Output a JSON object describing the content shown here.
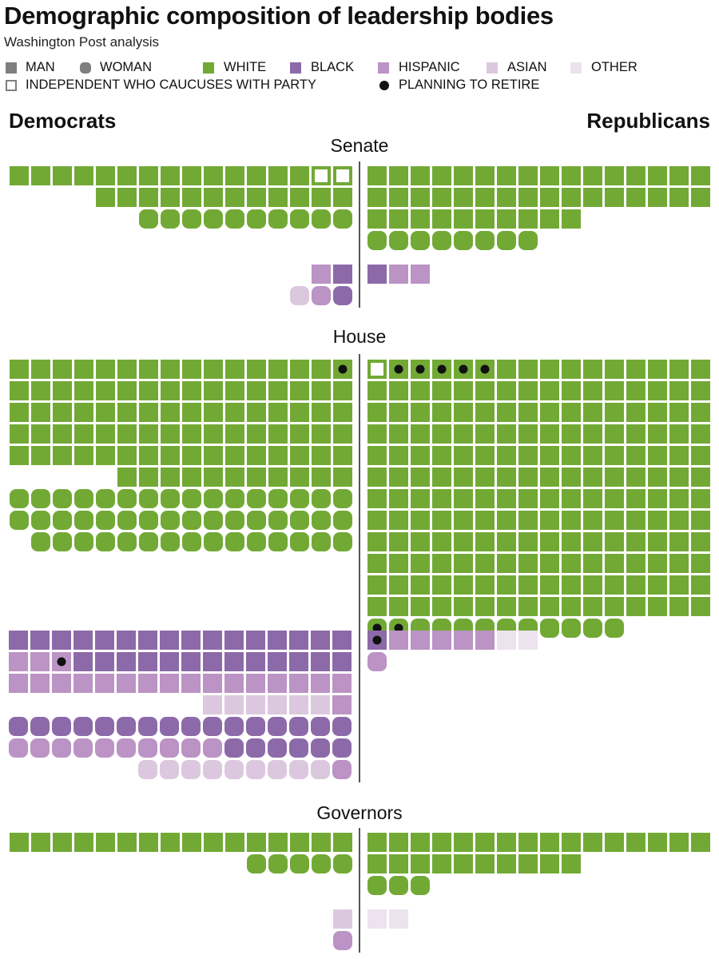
{
  "title": "Demographic composition of leadership bodies",
  "subtitle": "Washington Post analysis",
  "legend": {
    "man": "MAN",
    "woman": "WOMAN",
    "white": "WHITE",
    "black": "BLACK",
    "hispanic": "HISPANIC",
    "asian": "ASIAN",
    "other": "OTHER",
    "independent": "INDEPENDENT WHO CAUCUSES WITH PARTY",
    "retire": "PLANNING TO RETIRE"
  },
  "parties": {
    "left": "Democrats",
    "right": "Republicans"
  },
  "colors": {
    "white": "#72a935",
    "black": "#8c6aa9",
    "hispanic": "#bb93c4",
    "asian": "#dcc8de",
    "other": "#ede3ef",
    "legend_gray": "#7f7f7f",
    "retire_dot": "#111111"
  },
  "chart_data": {
    "type": "waffle",
    "unit": "one square = one member (squares = men, rounded = women)",
    "sections": [
      {
        "name": "Senate",
        "democrats": {
          "groups": [
            {
              "race": "white",
              "gender": "man",
              "rows": [
                16,
                12
              ],
              "independent": 2
            },
            {
              "race": "white",
              "gender": "woman",
              "rows": [
                10
              ]
            },
            {
              "race": "hispanic",
              "gender": "man",
              "rows": [
                1
              ]
            },
            {
              "race": "black",
              "gender": "man",
              "rows": [
                1
              ]
            },
            {
              "race": "asian",
              "gender": "woman",
              "rows": [
                1
              ]
            },
            {
              "race": "hispanic",
              "gender": "woman",
              "rows": [
                1
              ]
            },
            {
              "race": "black",
              "gender": "woman",
              "rows": [
                1
              ]
            }
          ]
        },
        "republicans": {
          "groups": [
            {
              "race": "white",
              "gender": "man",
              "rows": [
                16,
                16,
                10
              ]
            },
            {
              "race": "white",
              "gender": "woman",
              "rows": [
                8
              ]
            },
            {
              "race": "black",
              "gender": "man",
              "rows": [
                1
              ]
            },
            {
              "race": "hispanic",
              "gender": "man",
              "rows": [
                2
              ]
            }
          ]
        }
      },
      {
        "name": "House",
        "democrats": {
          "groups": [
            {
              "race": "white",
              "gender": "man",
              "rows": [
                16,
                16,
                16,
                16,
                16,
                11
              ],
              "retiring": 1
            },
            {
              "race": "white",
              "gender": "woman",
              "rows": [
                16,
                16,
                15
              ]
            },
            {
              "race": "black",
              "gender": "man",
              "total": 29,
              "retiring": 1
            },
            {
              "race": "hispanic",
              "gender": "man",
              "total": 19
            },
            {
              "race": "asian",
              "gender": "man",
              "total": 6
            },
            {
              "race": "black",
              "gender": "woman",
              "total": 22
            },
            {
              "race": "hispanic",
              "gender": "woman",
              "total": 10
            },
            {
              "race": "asian",
              "gender": "woman",
              "total": 10
            }
          ]
        },
        "republicans": {
          "groups": [
            {
              "race": "white",
              "gender": "man",
              "rows": [
                16,
                16,
                16,
                16,
                16,
                16,
                16,
                16,
                16,
                16,
                16,
                16
              ],
              "independent": 1,
              "retiring": 5
            },
            {
              "race": "white",
              "gender": "woman",
              "rows": [
                12
              ],
              "retiring": 2
            },
            {
              "race": "black",
              "gender": "man",
              "rows": [
                1
              ],
              "retiring": 1
            },
            {
              "race": "hispanic",
              "gender": "man",
              "rows": [
                5
              ]
            },
            {
              "race": "other",
              "gender": "man",
              "rows": [
                2
              ]
            },
            {
              "race": "hispanic",
              "gender": "woman",
              "rows": [
                1
              ]
            }
          ]
        }
      },
      {
        "name": "Governors",
        "democrats": {
          "groups": [
            {
              "race": "white",
              "gender": "man",
              "rows": [
                16
              ]
            },
            {
              "race": "white",
              "gender": "woman",
              "rows": [
                5
              ]
            },
            {
              "race": "asian",
              "gender": "man",
              "rows": [
                1
              ]
            },
            {
              "race": "hispanic",
              "gender": "woman",
              "rows": [
                1
              ]
            }
          ]
        },
        "republicans": {
          "groups": [
            {
              "race": "white",
              "gender": "man",
              "rows": [
                16,
                10
              ]
            },
            {
              "race": "white",
              "gender": "woman",
              "rows": [
                3
              ]
            },
            {
              "race": "other",
              "gender": "man",
              "rows": [
                2
              ]
            }
          ]
        }
      }
    ]
  }
}
